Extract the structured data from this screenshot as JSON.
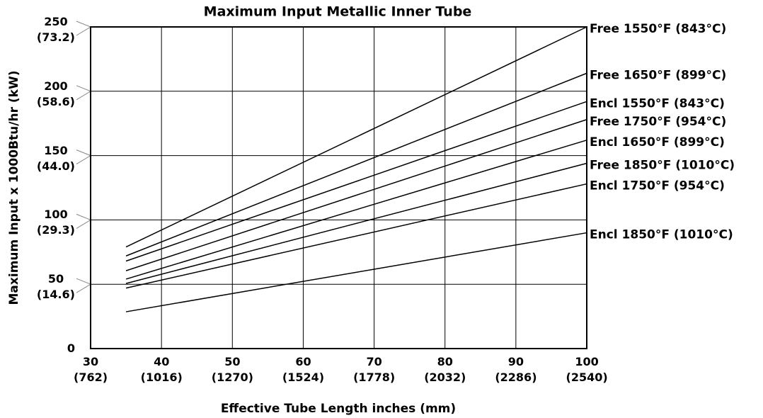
{
  "chart_data": {
    "type": "line",
    "title": "Maximum Input Metallic Inner Tube",
    "xlabel": "Effective Tube Length inches (mm)",
    "ylabel": "Maximum Input x 1000Btu/hr (kW)",
    "x": [
      35,
      100
    ],
    "series": [
      {
        "name": "Free 1550°F (843°C)",
        "color": "#000000",
        "values": [
          79,
          250
        ]
      },
      {
        "name": "Free 1650°F (899°C)",
        "color": "#000000",
        "values": [
          72,
          214
        ]
      },
      {
        "name": "Encl 1550°F (843°C)",
        "color": "#000000",
        "values": [
          68,
          192
        ]
      },
      {
        "name": "Free 1750°F (954°C)",
        "color": "#000000",
        "values": [
          60.5,
          178
        ]
      },
      {
        "name": "Encl 1650°F (899°C)",
        "color": "#000000",
        "values": [
          54,
          162
        ]
      },
      {
        "name": "Free 1850°F (1010°C)",
        "color": "#000000",
        "values": [
          50.6,
          144
        ]
      },
      {
        "name": "Encl 1750°F (954°C)",
        "color": "#000000",
        "values": [
          47,
          128
        ]
      },
      {
        "name": "Encl 1850°F (1010°C)",
        "color": "#000000",
        "values": [
          28.6,
          90
        ]
      }
    ],
    "xlim": [
      30,
      100
    ],
    "xticks": [
      {
        "value": 30,
        "label": "30\n(762)"
      },
      {
        "value": 40,
        "label": "40\n(1016)"
      },
      {
        "value": 50,
        "label": "50\n(1270)"
      },
      {
        "value": 60,
        "label": "60\n(1524)"
      },
      {
        "value": 70,
        "label": "70\n(1778)"
      },
      {
        "value": 80,
        "label": "80\n(2032)"
      },
      {
        "value": 90,
        "label": "90\n(2286)"
      },
      {
        "value": 100,
        "label": "100\n(2540)"
      }
    ],
    "ylim": [
      0,
      250
    ],
    "yticks": [
      0,
      {
        "value": 50,
        "label": "50\n(14.6)"
      },
      {
        "value": 100,
        "label": "100\n(29.3)"
      },
      {
        "value": 150,
        "label": "150\n(44.0)"
      },
      {
        "value": 200,
        "label": "200\n(58.6)"
      },
      {
        "value": 250,
        "label": "250\n(73.2)"
      }
    ],
    "grid": true
  }
}
